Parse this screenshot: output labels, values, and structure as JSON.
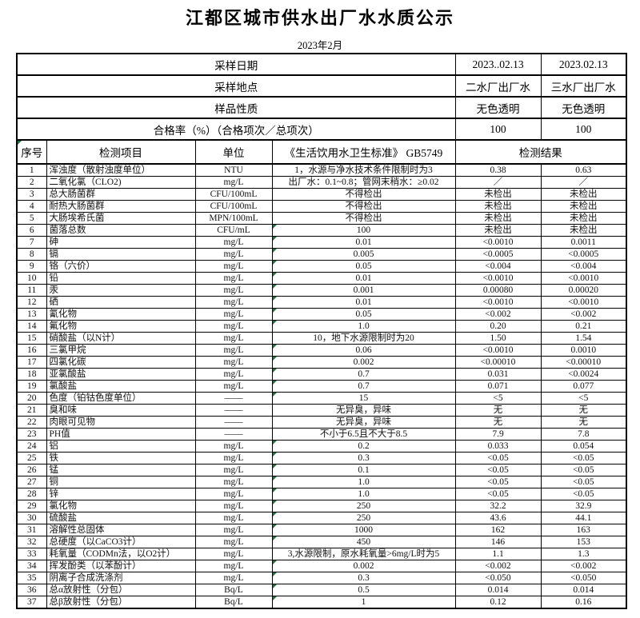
{
  "page": {
    "title": "江都区城市供水出厂水水质公示",
    "subtitle": "2023年2月"
  },
  "colors": {
    "flag_green": "#1f7145",
    "border": "#000000",
    "background": "#ffffff"
  },
  "info": {
    "rows": [
      {
        "label": "采样日期",
        "v1": "2023..02.13",
        "v2": "2023.02.13"
      },
      {
        "label": "采样地点",
        "v1": "二水厂出厂水",
        "v2": "三水厂出厂水"
      },
      {
        "label": "样品性质",
        "v1": "无色透明",
        "v2": "无色透明"
      },
      {
        "label": "合格率（%）（合格项次／总项次）",
        "v1": "100",
        "v2": "100"
      }
    ]
  },
  "table": {
    "headers": {
      "no": "序号",
      "item": "检测项目",
      "unit": "单位",
      "standard": "《生活饮用水卫生标准》 GB5749",
      "result": "检测结果"
    },
    "rows": [
      {
        "no": "1",
        "item": "浑浊度（散射浊度单位）",
        "unit": "NTU",
        "std": "1，水源与净水技术条件限制时为3",
        "r1": "0.38",
        "r2": "0.63",
        "flag": false
      },
      {
        "no": "2",
        "item": "二氧化氯（CLO2)",
        "unit": "mg/L",
        "std": "出厂水：0.1~0.8；管网末稍水：≥0.02",
        "r1": "／",
        "r2": "／",
        "flag": false
      },
      {
        "no": "3",
        "item": "总大肠菌群",
        "unit": "CFU/100mL",
        "std": "不得检出",
        "r1": "未检出",
        "r2": "未检出",
        "flag": false
      },
      {
        "no": "4",
        "item": "耐热大肠菌群",
        "unit": "CFU/100mL",
        "std": "不得检出",
        "r1": "未检出",
        "r2": "未检出",
        "flag": false
      },
      {
        "no": "5",
        "item": "大肠埃希氏菌",
        "unit": "MPN/100mL",
        "std": "不得检出",
        "r1": "未检出",
        "r2": "未检出",
        "flag": false
      },
      {
        "no": "6",
        "item": "菌落总数",
        "unit": "CFU/mL",
        "std": "100",
        "r1": "未检出",
        "r2": "未检出",
        "flag": true
      },
      {
        "no": "7",
        "item": "砷",
        "unit": "mg/L",
        "std": "0.01",
        "r1": "<0.0010",
        "r2": "0.0011",
        "flag": true
      },
      {
        "no": "8",
        "item": "镉",
        "unit": "mg/L",
        "std": "0.005",
        "r1": "<0.0005",
        "r2": "<0.0005",
        "flag": true
      },
      {
        "no": "9",
        "item": "铬（六价）",
        "unit": "mg/L",
        "std": "0.05",
        "r1": "<0.004",
        "r2": "<0.004",
        "flag": true
      },
      {
        "no": "10",
        "item": "铅",
        "unit": "mg/L",
        "std": "0.01",
        "r1": "<0.0010",
        "r2": "<0.0010",
        "flag": true
      },
      {
        "no": "11",
        "item": "汞",
        "unit": "mg/L",
        "std": "0.001",
        "r1": "0.00080",
        "r2": "0.00020",
        "flag": true
      },
      {
        "no": "12",
        "item": "硒",
        "unit": "mg/L",
        "std": "0.01",
        "r1": "<0.0010",
        "r2": "<0.0010",
        "flag": true
      },
      {
        "no": "13",
        "item": "氰化物",
        "unit": "mg/L",
        "std": "0.05",
        "r1": "<0.002",
        "r2": "<0.002",
        "flag": true
      },
      {
        "no": "14",
        "item": "氟化物",
        "unit": "mg/L",
        "std": "1.0",
        "r1": "0.20",
        "r2": "0.21",
        "flag": true
      },
      {
        "no": "15",
        "item": "硝酸盐（以N计）",
        "unit": "mg/L",
        "std": "10，地下水源限制时为20",
        "r1": "1.50",
        "r2": "1.54",
        "flag": false
      },
      {
        "no": "16",
        "item": "三氯甲烷",
        "unit": "mg/L",
        "std": "0.06",
        "r1": "<0.0010",
        "r2": "0.0010",
        "flag": true
      },
      {
        "no": "17",
        "item": "四氯化碳",
        "unit": "mg/L",
        "std": "0.002",
        "r1": "<0.00010",
        "r2": "<0.00010",
        "flag": true
      },
      {
        "no": "18",
        "item": "亚氯酸盐",
        "unit": "mg/L",
        "std": "0.7",
        "r1": "0.031",
        "r2": "<0.0024",
        "flag": true
      },
      {
        "no": "19",
        "item": "氯酸盐",
        "unit": "mg/L",
        "std": "0.7",
        "r1": "0.071",
        "r2": "0.077",
        "flag": true
      },
      {
        "no": "20",
        "item": "色度（铂钴色度单位）",
        "unit": "——",
        "std": "15",
        "r1": "<5",
        "r2": "<5",
        "flag": true
      },
      {
        "no": "21",
        "item": "臭和味",
        "unit": "——",
        "std": "无异臭，异味",
        "r1": "无",
        "r2": "无",
        "flag": false
      },
      {
        "no": "22",
        "item": "肉眼可见物",
        "unit": "——",
        "std": "无异臭，异味",
        "r1": "无",
        "r2": "无",
        "flag": false
      },
      {
        "no": "23",
        "item": "PH值",
        "unit": "——",
        "std": "不小于6.5且不大于8.5",
        "r1": "7.9",
        "r2": "7.8",
        "flag": false
      },
      {
        "no": "24",
        "item": "铝",
        "unit": "mg/L",
        "std": "0.2",
        "r1": "0.033",
        "r2": "0.054",
        "flag": true
      },
      {
        "no": "25",
        "item": "铁",
        "unit": "mg/L",
        "std": "0.3",
        "r1": "<0.05",
        "r2": "<0.05",
        "flag": true
      },
      {
        "no": "26",
        "item": "锰",
        "unit": "mg/L",
        "std": "0.1",
        "r1": "<0.05",
        "r2": "<0.05",
        "flag": true
      },
      {
        "no": "27",
        "item": "铜",
        "unit": "mg/L",
        "std": "1.0",
        "r1": "<0.05",
        "r2": "<0.05",
        "flag": true
      },
      {
        "no": "28",
        "item": "锌",
        "unit": "mg/L",
        "std": "1.0",
        "r1": "<0.05",
        "r2": "<0.05",
        "flag": true
      },
      {
        "no": "29",
        "item": "氯化物",
        "unit": "mg/L",
        "std": "250",
        "r1": "32.2",
        "r2": "32.9",
        "flag": true
      },
      {
        "no": "30",
        "item": "硫酸盐",
        "unit": "mg/L",
        "std": "250",
        "r1": "43.6",
        "r2": "44.1",
        "flag": true
      },
      {
        "no": "31",
        "item": "溶解性总固体",
        "unit": "mg/L",
        "std": "1000",
        "r1": "162",
        "r2": "163",
        "flag": true
      },
      {
        "no": "32",
        "item": "总硬度（以CaCO3计）",
        "unit": "mg/L",
        "std": "450",
        "r1": "146",
        "r2": "153",
        "flag": true
      },
      {
        "no": "33",
        "item": "耗氧量（CODMn法，以O2计）",
        "unit": "mg/L",
        "std": "3,水源限制，原水耗氧量>6mg/L时为5",
        "r1": "1.1",
        "r2": "1.3",
        "flag": false
      },
      {
        "no": "34",
        "item": "挥发酚类（以苯酚计）",
        "unit": "mg/L",
        "std": "0.002",
        "r1": "<0.002",
        "r2": "<0.002",
        "flag": true
      },
      {
        "no": "35",
        "item": "阴离子合成洗涤剂",
        "unit": "mg/L",
        "std": "0.3",
        "r1": "<0.050",
        "r2": "<0.050",
        "flag": true
      },
      {
        "no": "36",
        "item": "总α放射性（分包）",
        "unit": "Bq/L",
        "std": "0.5",
        "r1": "0.014",
        "r2": "0.014",
        "flag": true
      },
      {
        "no": "37",
        "item": "总β放射性（分包）",
        "unit": "Bq/L",
        "std": "1",
        "r1": "0.12",
        "r2": "0.16",
        "flag": true
      }
    ]
  }
}
